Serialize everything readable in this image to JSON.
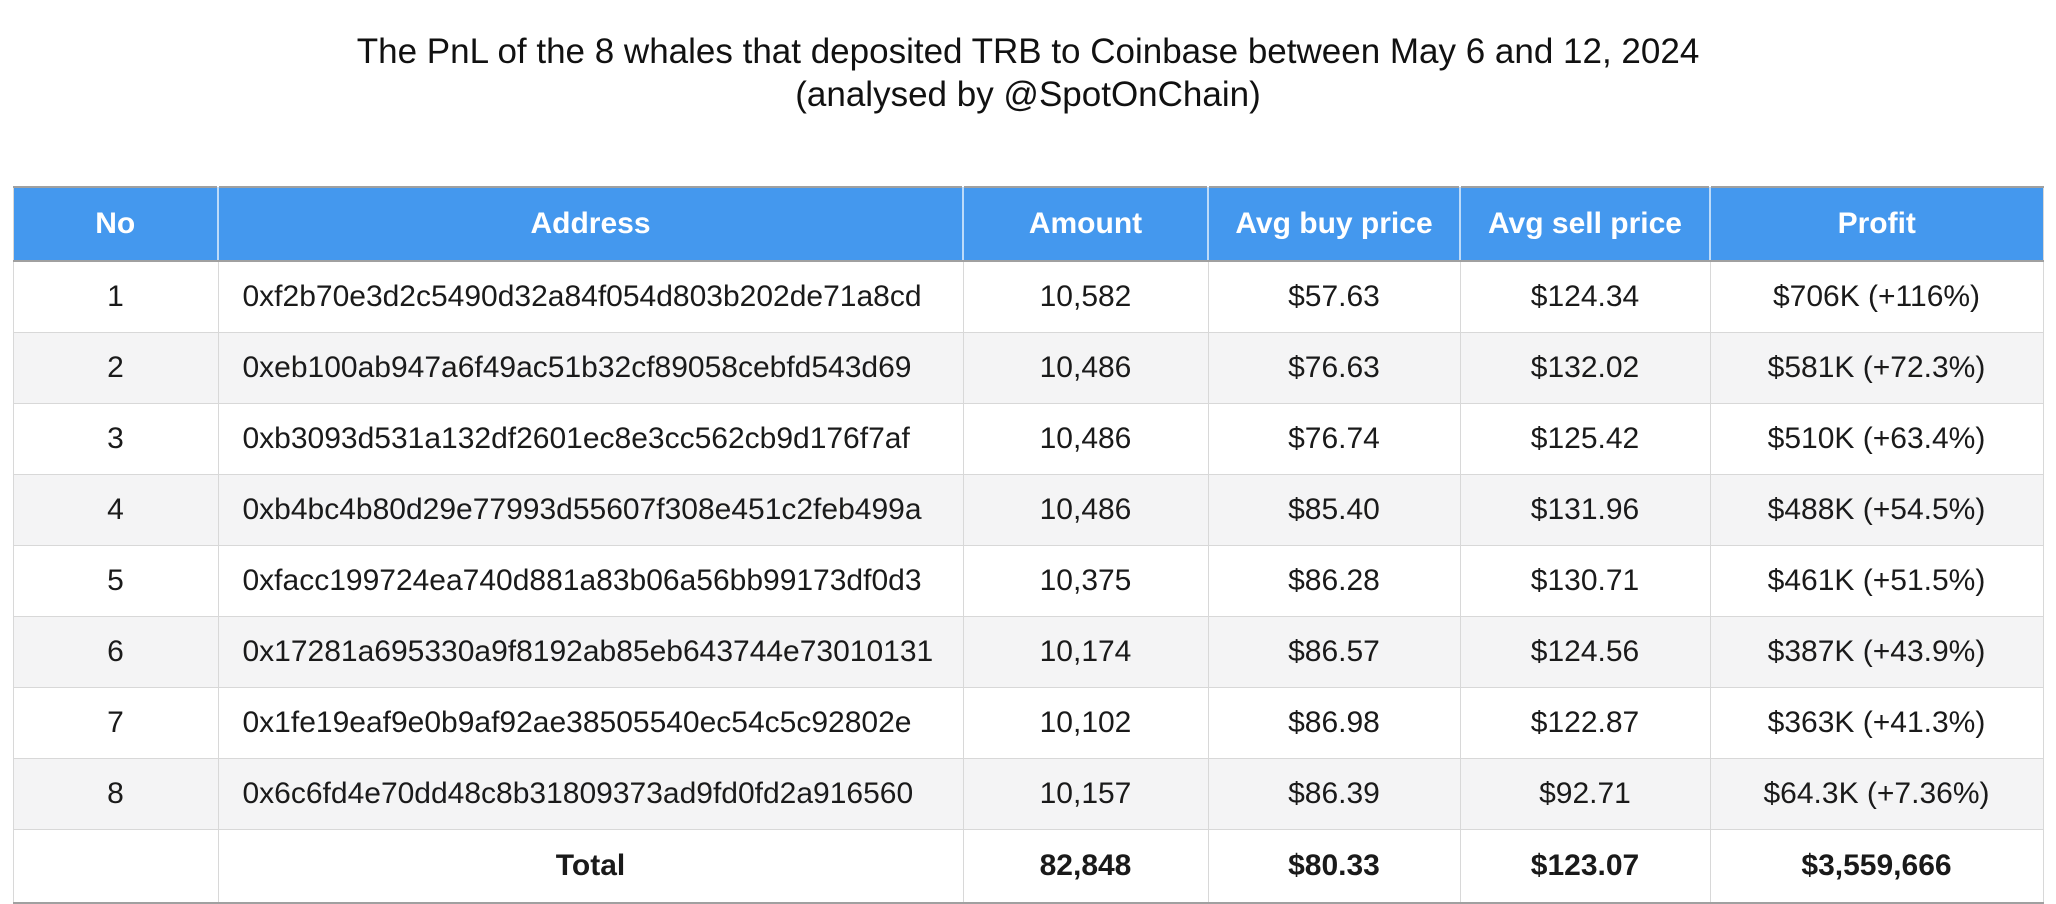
{
  "chart_data": {
    "type": "table",
    "title": "The PnL of the 8 whales that deposited TRB to Coinbase between May 6 and 12, 2024",
    "subtitle": "(analysed by @SpotOnChain)",
    "columns": [
      "No",
      "Address",
      "Amount",
      "Avg buy price",
      "Avg sell price",
      "Profit"
    ],
    "rows": [
      {
        "no": "1",
        "address": "0xf2b70e3d2c5490d32a84f054d803b202de71a8cd",
        "amount": "10,582",
        "avg_buy": "$57.63",
        "avg_sell": "$124.34",
        "profit": "$706K (+116%)"
      },
      {
        "no": "2",
        "address": "0xeb100ab947a6f49ac51b32cf89058cebfd543d69",
        "amount": "10,486",
        "avg_buy": "$76.63",
        "avg_sell": "$132.02",
        "profit": "$581K (+72.3%)"
      },
      {
        "no": "3",
        "address": "0xb3093d531a132df2601ec8e3cc562cb9d176f7af",
        "amount": "10,486",
        "avg_buy": "$76.74",
        "avg_sell": "$125.42",
        "profit": "$510K (+63.4%)"
      },
      {
        "no": "4",
        "address": "0xb4bc4b80d29e77993d55607f308e451c2feb499a",
        "amount": "10,486",
        "avg_buy": "$85.40",
        "avg_sell": "$131.96",
        "profit": "$488K (+54.5%)"
      },
      {
        "no": "5",
        "address": "0xfacc199724ea740d881a83b06a56bb99173df0d3",
        "amount": "10,375",
        "avg_buy": "$86.28",
        "avg_sell": "$130.71",
        "profit": "$461K (+51.5%)"
      },
      {
        "no": "6",
        "address": "0x17281a695330a9f8192ab85eb643744e73010131",
        "amount": "10,174",
        "avg_buy": "$86.57",
        "avg_sell": "$124.56",
        "profit": "$387K (+43.9%)"
      },
      {
        "no": "7",
        "address": "0x1fe19eaf9e0b9af92ae38505540ec54c5c92802e",
        "amount": "10,102",
        "avg_buy": "$86.98",
        "avg_sell": "$122.87",
        "profit": "$363K (+41.3%)"
      },
      {
        "no": "8",
        "address": "0x6c6fd4e70dd48c8b31809373ad9fd0fd2a916560",
        "amount": "10,157",
        "avg_buy": "$86.39",
        "avg_sell": "$92.71",
        "profit": "$64.3K (+7.36%)"
      }
    ],
    "total": {
      "label": "Total",
      "amount": "82,848",
      "avg_buy": "$80.33",
      "avg_sell": "$123.07",
      "profit": "$3,559,666"
    },
    "layout_hints": {
      "header_style": "blue-banded",
      "row_striping": "even-rows-gray",
      "grid": "on"
    }
  },
  "colors": {
    "header_bg": "#4498EE",
    "header_text": "#FFFFFF",
    "row_alt_bg": "#F4F4F5",
    "border": "#D8D8D8",
    "outer_border": "#A0A0A0",
    "text": "#1A1A1A"
  }
}
